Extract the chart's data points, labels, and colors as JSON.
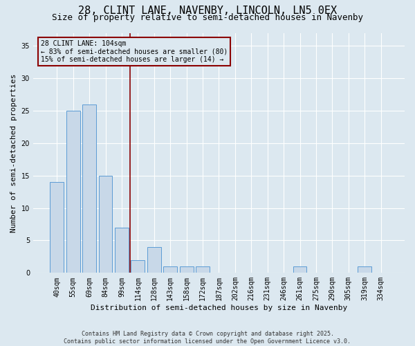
{
  "title1": "28, CLINT LANE, NAVENBY, LINCOLN, LN5 0EX",
  "title2": "Size of property relative to semi-detached houses in Navenby",
  "xlabel": "Distribution of semi-detached houses by size in Navenby",
  "ylabel": "Number of semi-detached properties",
  "categories": [
    "40sqm",
    "55sqm",
    "69sqm",
    "84sqm",
    "99sqm",
    "114sqm",
    "128sqm",
    "143sqm",
    "158sqm",
    "172sqm",
    "187sqm",
    "202sqm",
    "216sqm",
    "231sqm",
    "246sqm",
    "261sqm",
    "275sqm",
    "290sqm",
    "305sqm",
    "319sqm",
    "334sqm"
  ],
  "values": [
    14,
    25,
    26,
    15,
    7,
    2,
    4,
    1,
    1,
    1,
    0,
    0,
    0,
    0,
    0,
    1,
    0,
    0,
    0,
    1,
    0
  ],
  "bar_color": "#c8d8e8",
  "bar_edge_color": "#5b9bd5",
  "vline_x": 4.5,
  "vline_color": "#8b0000",
  "annotation_line1": "28 CLINT LANE: 104sqm",
  "annotation_line2": "← 83% of semi-detached houses are smaller (80)",
  "annotation_line3": "15% of semi-detached houses are larger (14) →",
  "annotation_box_color": "#8b0000",
  "background_color": "#dce8f0",
  "ylim": [
    0,
    37
  ],
  "yticks": [
    0,
    5,
    10,
    15,
    20,
    25,
    30,
    35
  ],
  "footer": "Contains HM Land Registry data © Crown copyright and database right 2025.\nContains public sector information licensed under the Open Government Licence v3.0.",
  "title_fontsize": 11,
  "subtitle_fontsize": 9,
  "ylabel_fontsize": 8,
  "xlabel_fontsize": 8,
  "tick_fontsize": 7,
  "annot_fontsize": 7,
  "footer_fontsize": 6
}
